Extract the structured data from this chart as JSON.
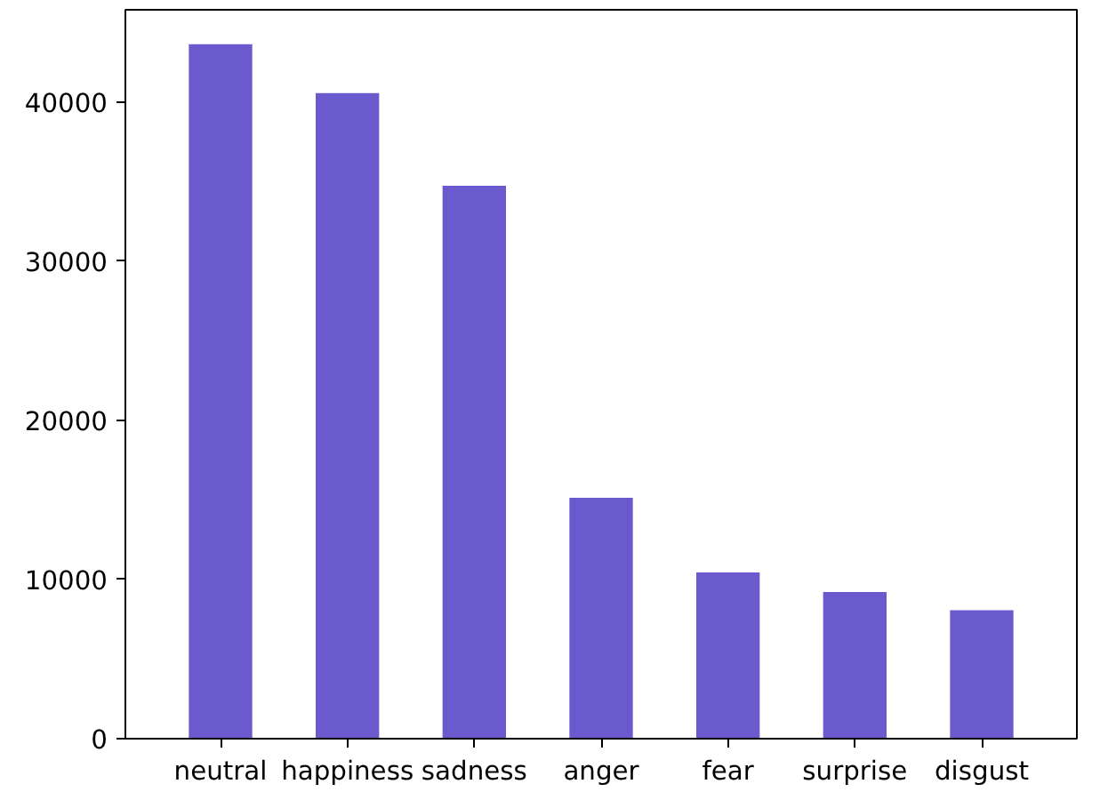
{
  "chart_data": {
    "type": "bar",
    "categories": [
      "neutral",
      "happiness",
      "sadness",
      "anger",
      "fear",
      "surprise",
      "disgust"
    ],
    "values": [
      43640,
      40570,
      34740,
      15130,
      10440,
      9210,
      8070
    ],
    "color": "#6a5acd",
    "ylim": [
      0,
      45800
    ],
    "yticks": [
      0,
      10000,
      20000,
      30000,
      40000
    ],
    "grid": false
  }
}
